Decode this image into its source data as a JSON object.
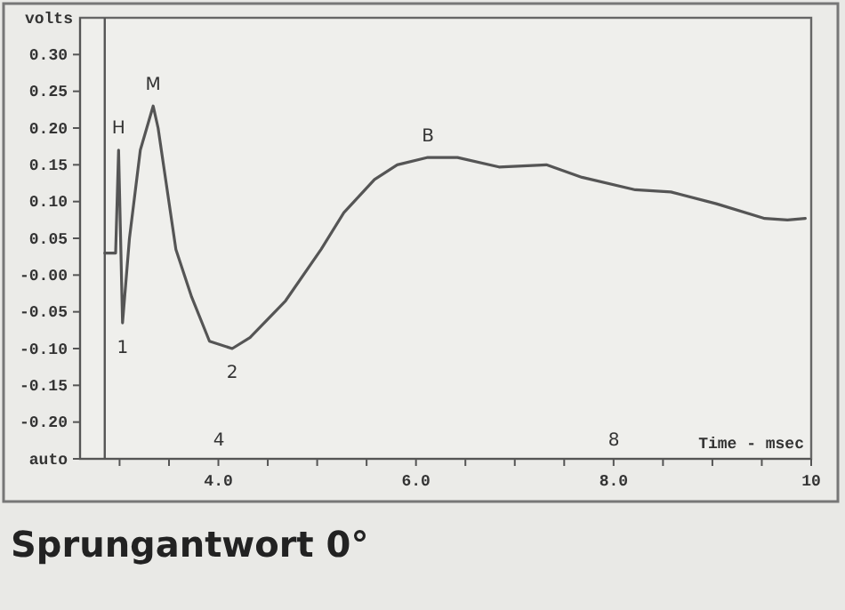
{
  "chart_data": {
    "type": "line",
    "title": "Sprungantwort 0°",
    "xlabel": "Time - msec",
    "ylabel": "volts",
    "xlim": [
      2.6,
      10
    ],
    "ylim": [
      -0.25,
      0.35
    ],
    "xticks": [
      {
        "value": 3,
        "label": null
      },
      {
        "value": 3.5,
        "label": null
      },
      {
        "value": 4,
        "label": "4.0"
      },
      {
        "value": 4.5,
        "label": null
      },
      {
        "value": 5,
        "label": null
      },
      {
        "value": 5.5,
        "label": null
      },
      {
        "value": 6,
        "label": "6.0"
      },
      {
        "value": 6.5,
        "label": null
      },
      {
        "value": 7,
        "label": null
      },
      {
        "value": 7.5,
        "label": null
      },
      {
        "value": 8,
        "label": "8.0"
      },
      {
        "value": 8.5,
        "label": null
      },
      {
        "value": 9,
        "label": null
      },
      {
        "value": 9.5,
        "label": null
      },
      {
        "value": 10,
        "label": "10"
      }
    ],
    "yticks": [
      {
        "value": -0.25,
        "label": "auto"
      },
      {
        "value": -0.2,
        "label": "-0.20"
      },
      {
        "value": -0.15,
        "label": "-0.15"
      },
      {
        "value": -0.1,
        "label": "-0.10"
      },
      {
        "value": -0.05,
        "label": "-0.05"
      },
      {
        "value": 0,
        "label": "-0.00"
      },
      {
        "value": 0.05,
        "label": "0.05"
      },
      {
        "value": 0.1,
        "label": "0.10"
      },
      {
        "value": 0.15,
        "label": "0.15"
      },
      {
        "value": 0.2,
        "label": "0.20"
      },
      {
        "value": 0.25,
        "label": "0.25"
      },
      {
        "value": 0.3,
        "label": "0.30"
      }
    ],
    "grid": false,
    "line_style": "solid",
    "ref_lines": [
      {
        "axis": "x",
        "value": 2.85,
        "label": null,
        "color": "#555555"
      }
    ],
    "series": [
      {
        "color": "#555555",
        "x": [
          2.85,
          2.96,
          2.99,
          3.03,
          3.1,
          3.21,
          3.34,
          3.39,
          3.57,
          3.73,
          3.91,
          4.14,
          4.32,
          4.68,
          5.04,
          5.27,
          5.58,
          5.81,
          6.12,
          6.42,
          6.84,
          7.32,
          7.68,
          8.22,
          8.58,
          9.04,
          9.53,
          9.76,
          9.94
        ],
        "values": [
          0.03,
          0.03,
          0.17,
          -0.065,
          0.05,
          0.17,
          0.23,
          0.2,
          0.035,
          -0.03,
          -0.09,
          -0.1,
          -0.085,
          -0.035,
          0.035,
          0.085,
          0.13,
          0.15,
          0.16,
          0.16,
          0.147,
          0.15,
          0.133,
          0.116,
          0.113,
          0.097,
          0.077,
          0.075,
          0.077
        ]
      }
    ],
    "annotations": [
      {
        "text": "H",
        "x": 2.99,
        "y": 0.17
      },
      {
        "text": "M",
        "x": 3.34,
        "y": 0.23
      },
      {
        "text": "B",
        "x": 6.12,
        "y": 0.16
      },
      {
        "text": "1",
        "x": 3.03,
        "y": -0.065
      },
      {
        "text": "2",
        "x": 4.14,
        "y": -0.1
      },
      "4",
      "8"
    ]
  }
}
